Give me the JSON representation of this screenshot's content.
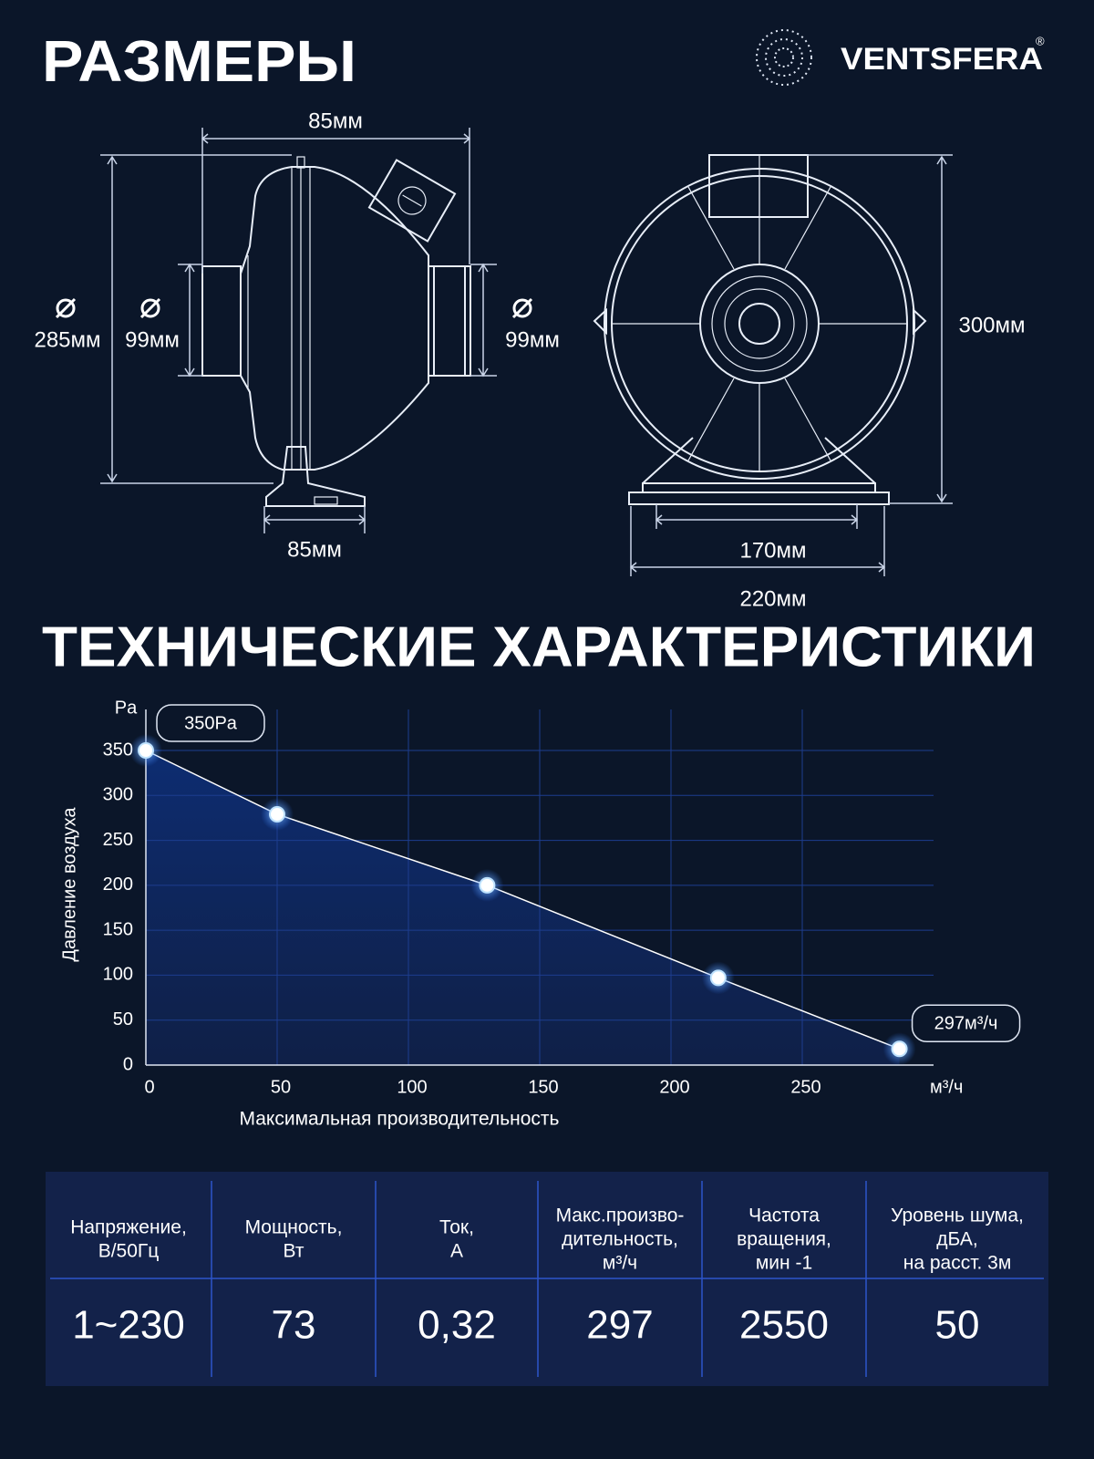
{
  "header": {
    "title": "РАЗМЕРЫ",
    "logo": "VENTSFERA",
    "logo_mark": "®"
  },
  "dimensions": {
    "side_top": "85мм",
    "side_body_diameter": "285мм",
    "side_inlet_diameter": "99мм",
    "side_outlet_diameter": "99мм",
    "side_foot": "85мм",
    "front_height": "300мм",
    "front_feet": "170мм",
    "front_width": "220мм"
  },
  "section_title": "ТЕХНИЧЕСКИЕ ХАРАКТЕРИСТИКИ",
  "chart_data": {
    "type": "line",
    "x_label": "Максимальная производительность",
    "y_label": "Давление воздуха",
    "x_unit": "м³/ч",
    "y_unit": "Pa",
    "x": [
      0,
      50,
      130,
      218,
      287
    ],
    "values": [
      350,
      279,
      200,
      97,
      18
    ],
    "xlim": [
      0,
      300
    ],
    "ylim": [
      0,
      350
    ],
    "xticks": [
      0,
      50,
      100,
      150,
      200,
      250
    ],
    "yticks": [
      0,
      50,
      100,
      150,
      200,
      250,
      300,
      350
    ],
    "annotations": [
      "350Pa",
      "297м³/ч"
    ],
    "color": "#ffffff",
    "grid": true
  },
  "table": {
    "header": [
      [
        "Напряжение,",
        "В/50Гц"
      ],
      [
        "Мощность,",
        "Вт"
      ],
      [
        "Ток,",
        "А"
      ],
      [
        "Макс.произво-",
        "дительность,",
        "м³/ч"
      ],
      [
        "Частота",
        "вращения,",
        "мин -1"
      ],
      [
        "Уровень шума,",
        "дБА,",
        "на расст. 3м"
      ]
    ],
    "rows": [
      [
        "1~230",
        "73",
        "0,32",
        "297",
        "2550",
        "50"
      ]
    ]
  }
}
